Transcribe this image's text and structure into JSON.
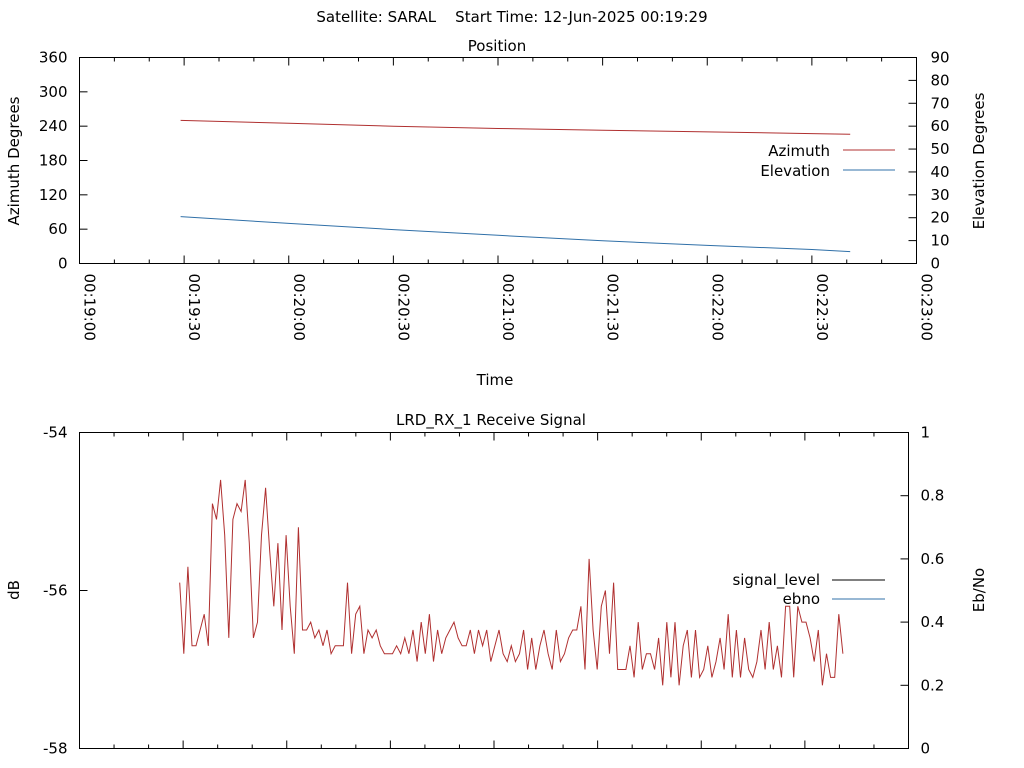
{
  "header": {
    "title": "Satellite: SARAL    Start Time: 12-Jun-2025 00:19:29"
  },
  "chart_data": [
    {
      "type": "line",
      "title": "Position",
      "xlabel": "Time",
      "ylabel": "Azimuth Degrees",
      "y2label": "Elevation Degrees",
      "x_ticks": [
        "00:19:00",
        "00:19:30",
        "00:20:00",
        "00:20:30",
        "00:21:00",
        "00:21:30",
        "00:22:00",
        "00:22:30",
        "00:23:00"
      ],
      "xlim_seconds": [
        1140,
        1380
      ],
      "ylim": [
        0,
        360
      ],
      "y_ticks": [
        "0",
        "60",
        "120",
        "180",
        "240",
        "300",
        "360"
      ],
      "y2lim": [
        0,
        90
      ],
      "y2_ticks": [
        "0",
        "10",
        "20",
        "30",
        "40",
        "50",
        "60",
        "70",
        "80",
        "90"
      ],
      "legend_position": "right",
      "grid": false,
      "series": [
        {
          "name": "Azimuth",
          "axis": "left",
          "color": "#b03030",
          "x": [
            "00:19:29",
            "00:20:00",
            "00:20:30",
            "00:21:00",
            "00:21:30",
            "00:22:00",
            "00:22:30",
            "00:22:41"
          ],
          "x_seconds": [
            1169,
            1200,
            1230,
            1260,
            1290,
            1320,
            1350,
            1361
          ],
          "values": [
            250,
            245,
            240,
            236,
            233,
            230,
            227,
            226
          ]
        },
        {
          "name": "Elevation",
          "axis": "right",
          "color": "#3070a8",
          "x": [
            "00:19:29",
            "00:20:00",
            "00:20:30",
            "00:21:00",
            "00:21:30",
            "00:22:00",
            "00:22:30",
            "00:22:41"
          ],
          "x_seconds": [
            1169,
            1200,
            1230,
            1260,
            1290,
            1320,
            1350,
            1361
          ],
          "values": [
            20.5,
            17.5,
            14.8,
            12.3,
            9.9,
            7.9,
            6.1,
            5.2
          ]
        }
      ]
    },
    {
      "type": "line",
      "title": "LRD_RX_1 Receive Signal",
      "ylabel": "dB",
      "y2label": "Eb/No",
      "ylim": [
        -58,
        -54
      ],
      "y_ticks": [
        "-54",
        "-56",
        "-58"
      ],
      "y2lim": [
        0,
        1
      ],
      "y2_ticks": [
        "0",
        "0.2",
        "0.4",
        "0.6",
        "0.8",
        "1"
      ],
      "xlim_seconds": [
        1140,
        1380
      ],
      "legend_position": "right",
      "grid": false,
      "series": [
        {
          "name": "signal_level",
          "axis": "left",
          "color": "#b03030",
          "legend_color": "#000000",
          "x_seconds_start": 1169,
          "x_seconds_end": 1361,
          "values": [
            -55.9,
            -56.8,
            -55.7,
            -56.7,
            -56.7,
            -56.5,
            -56.3,
            -56.7,
            -54.9,
            -55.1,
            -54.6,
            -55.3,
            -56.6,
            -55.1,
            -54.9,
            -55.0,
            -54.6,
            -55.4,
            -56.6,
            -56.4,
            -55.3,
            -54.7,
            -55.5,
            -56.2,
            -55.4,
            -56.5,
            -55.3,
            -56.2,
            -56.8,
            -55.2,
            -56.5,
            -56.5,
            -56.4,
            -56.6,
            -56.5,
            -56.7,
            -56.5,
            -56.8,
            -56.7,
            -56.7,
            -56.7,
            -55.9,
            -56.8,
            -56.3,
            -56.2,
            -56.8,
            -56.5,
            -56.6,
            -56.5,
            -56.7,
            -56.8,
            -56.8,
            -56.8,
            -56.7,
            -56.8,
            -56.6,
            -56.8,
            -56.5,
            -56.9,
            -56.4,
            -56.8,
            -56.3,
            -56.9,
            -56.5,
            -56.8,
            -56.6,
            -56.5,
            -56.4,
            -56.6,
            -56.7,
            -56.7,
            -56.5,
            -56.8,
            -56.5,
            -56.7,
            -56.5,
            -56.9,
            -56.7,
            -56.5,
            -56.8,
            -56.9,
            -56.7,
            -56.9,
            -56.8,
            -56.5,
            -57.0,
            -56.6,
            -57.0,
            -56.7,
            -56.5,
            -56.8,
            -57.0,
            -56.5,
            -56.9,
            -56.8,
            -56.6,
            -56.5,
            -56.5,
            -56.2,
            -57.0,
            -55.6,
            -56.5,
            -57.0,
            -56.2,
            -56.0,
            -56.8,
            -55.9,
            -57.0,
            -57.0,
            -57.0,
            -56.7,
            -57.1,
            -56.4,
            -57.0,
            -56.8,
            -56.8,
            -57.0,
            -56.6,
            -57.2,
            -56.4,
            -57.1,
            -56.4,
            -57.2,
            -56.7,
            -56.5,
            -57.1,
            -56.5,
            -57.1,
            -57.0,
            -56.7,
            -57.1,
            -56.9,
            -56.6,
            -57.0,
            -56.3,
            -57.1,
            -56.5,
            -57.1,
            -56.6,
            -57.0,
            -57.1,
            -56.9,
            -56.5,
            -57.0,
            -56.4,
            -57.0,
            -56.7,
            -57.1,
            -56.2,
            -56.2,
            -57.1,
            -56.2,
            -56.4,
            -56.4,
            -56.6,
            -56.9,
            -56.5,
            -57.2,
            -56.8,
            -57.1,
            -57.1,
            -56.3,
            -56.8
          ]
        },
        {
          "name": "ebno",
          "axis": "right",
          "color": "#3070a8",
          "values": []
        }
      ]
    }
  ]
}
